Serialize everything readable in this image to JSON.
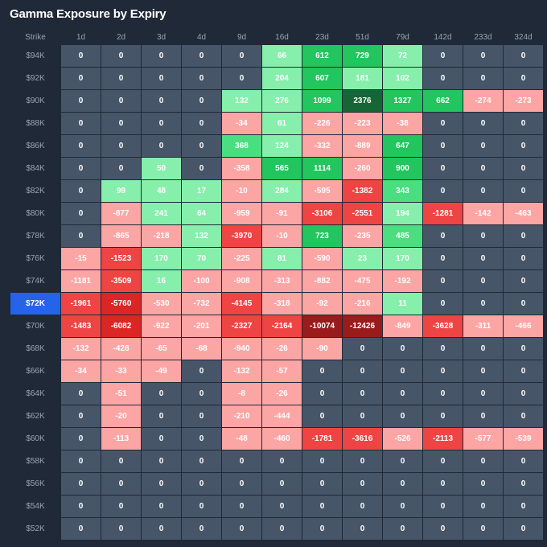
{
  "title": "Gamma Exposure by Expiry",
  "chart_data": {
    "type": "heatmap",
    "title": "Gamma Exposure by Expiry",
    "row_header": "Strike",
    "spot_strike": "$72K",
    "columns": [
      "1d",
      "2d",
      "3d",
      "4d",
      "9d",
      "16d",
      "23d",
      "51d",
      "79d",
      "142d",
      "233d",
      "324d"
    ],
    "rows": [
      "$94K",
      "$92K",
      "$90K",
      "$88K",
      "$86K",
      "$84K",
      "$82K",
      "$80K",
      "$78K",
      "$76K",
      "$74K",
      "$72K",
      "$70K",
      "$68K",
      "$66K",
      "$64K",
      "$62K",
      "$60K",
      "$58K",
      "$56K",
      "$54K",
      "$52K"
    ],
    "values": [
      [
        0,
        0,
        0,
        0,
        0,
        66,
        612,
        729,
        72,
        0,
        0,
        0
      ],
      [
        0,
        0,
        0,
        0,
        0,
        204,
        607,
        181,
        102,
        0,
        0,
        0
      ],
      [
        0,
        0,
        0,
        0,
        132,
        276,
        1099,
        2376,
        1327,
        662,
        -274,
        -273
      ],
      [
        0,
        0,
        0,
        0,
        -34,
        61,
        -226,
        -223,
        -38,
        0,
        0,
        0
      ],
      [
        0,
        0,
        0,
        0,
        368,
        124,
        -332,
        -889,
        647,
        0,
        0,
        0
      ],
      [
        0,
        0,
        50,
        0,
        -358,
        565,
        1114,
        -260,
        900,
        0,
        0,
        0
      ],
      [
        0,
        99,
        48,
        17,
        -10,
        284,
        -595,
        -1382,
        343,
        0,
        0,
        0
      ],
      [
        0,
        -877,
        241,
        64,
        -959,
        -91,
        -3106,
        -2551,
        194,
        -1281,
        -142,
        -463
      ],
      [
        0,
        -865,
        -218,
        132,
        -3970,
        -10,
        723,
        -235,
        485,
        0,
        0,
        0
      ],
      [
        -15,
        -1523,
        170,
        70,
        -225,
        81,
        -590,
        23,
        170,
        0,
        0,
        0
      ],
      [
        -1181,
        -3509,
        16,
        -100,
        -908,
        -313,
        -882,
        -475,
        -192,
        0,
        0,
        0
      ],
      [
        -1961,
        -5760,
        -530,
        -732,
        -4145,
        -318,
        -92,
        -216,
        11,
        0,
        0,
        0
      ],
      [
        -1483,
        -6082,
        -922,
        -201,
        -2327,
        -2164,
        -10074,
        -12426,
        -849,
        -3628,
        -311,
        -466
      ],
      [
        -132,
        -428,
        -65,
        -68,
        -940,
        -26,
        -90,
        0,
        0,
        0,
        0,
        0
      ],
      [
        -34,
        -33,
        -49,
        0,
        -132,
        -57,
        0,
        0,
        0,
        0,
        0,
        0
      ],
      [
        0,
        -51,
        0,
        0,
        -8,
        -26,
        0,
        0,
        0,
        0,
        0,
        0
      ],
      [
        0,
        -20,
        0,
        0,
        -210,
        -444,
        0,
        0,
        0,
        0,
        0,
        0
      ],
      [
        0,
        -113,
        0,
        0,
        -48,
        -460,
        -1781,
        -3616,
        -526,
        -2113,
        -577,
        -539
      ],
      [
        0,
        0,
        0,
        0,
        0,
        0,
        0,
        0,
        0,
        0,
        0,
        0
      ],
      [
        0,
        0,
        0,
        0,
        0,
        0,
        0,
        0,
        0,
        0,
        0,
        0
      ],
      [
        0,
        0,
        0,
        0,
        0,
        0,
        0,
        0,
        0,
        0,
        0,
        0
      ],
      [
        0,
        0,
        0,
        0,
        0,
        0,
        0,
        0,
        0,
        0,
        0,
        0
      ]
    ],
    "colors": {
      "zero": "#475569",
      "positive_light": "#86efac",
      "positive_mid": "#4ade80",
      "positive_strong": "#22c55e",
      "positive_max": "#166534",
      "negative_light": "#fca5a5",
      "negative_mid": "#ef4444",
      "negative_strong": "#dc2626",
      "negative_max": "#991b1b",
      "spot_highlight": "#2563eb"
    }
  }
}
